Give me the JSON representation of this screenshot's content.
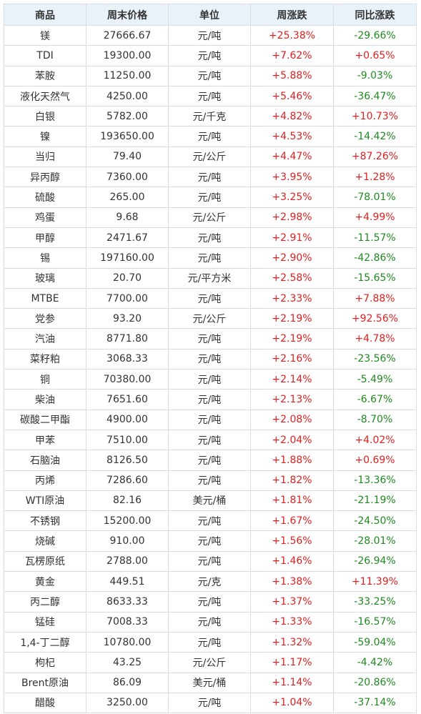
{
  "table": {
    "headers": [
      "商品",
      "周末价格",
      "单位",
      "周涨跌",
      "同比涨跌"
    ],
    "colors": {
      "up": "#e02020",
      "down": "#1f8a1f",
      "header_bg": "#e9f1f9",
      "border": "#d9dde3"
    },
    "rows": [
      [
        "镁",
        "27666.67",
        "元/吨",
        "+25.38%",
        "-29.66%"
      ],
      [
        "TDI",
        "19300.00",
        "元/吨",
        "+7.62%",
        "+0.65%"
      ],
      [
        "苯胺",
        "11250.00",
        "元/吨",
        "+5.88%",
        "-9.03%"
      ],
      [
        "液化天然气",
        "4250.00",
        "元/吨",
        "+5.46%",
        "-36.47%"
      ],
      [
        "白银",
        "5782.00",
        "元/千克",
        "+4.82%",
        "+10.73%"
      ],
      [
        "镍",
        "193650.00",
        "元/吨",
        "+4.53%",
        "-14.42%"
      ],
      [
        "当归",
        "79.40",
        "元/公斤",
        "+4.47%",
        "+87.26%"
      ],
      [
        "异丙醇",
        "7360.00",
        "元/吨",
        "+3.95%",
        "+1.28%"
      ],
      [
        "硫酸",
        "265.00",
        "元/吨",
        "+3.25%",
        "-78.01%"
      ],
      [
        "鸡蛋",
        "9.68",
        "元/公斤",
        "+2.98%",
        "+4.99%"
      ],
      [
        "甲醇",
        "2471.67",
        "元/吨",
        "+2.91%",
        "-11.57%"
      ],
      [
        "锡",
        "197160.00",
        "元/吨",
        "+2.90%",
        "-42.86%"
      ],
      [
        "玻璃",
        "20.70",
        "元/平方米",
        "+2.58%",
        "-15.65%"
      ],
      [
        "MTBE",
        "7700.00",
        "元/吨",
        "+2.33%",
        "+7.88%"
      ],
      [
        "党参",
        "93.20",
        "元/公斤",
        "+2.19%",
        "+92.56%"
      ],
      [
        "汽油",
        "8771.80",
        "元/吨",
        "+2.19%",
        "+4.78%"
      ],
      [
        "菜籽粕",
        "3068.33",
        "元/吨",
        "+2.16%",
        "-23.56%"
      ],
      [
        "铜",
        "70380.00",
        "元/吨",
        "+2.14%",
        "-5.49%"
      ],
      [
        "柴油",
        "7651.60",
        "元/吨",
        "+2.13%",
        "-6.67%"
      ],
      [
        "碳酸二甲酯",
        "4900.00",
        "元/吨",
        "+2.08%",
        "-8.70%"
      ],
      [
        "甲苯",
        "7510.00",
        "元/吨",
        "+2.04%",
        "+4.02%"
      ],
      [
        "石脑油",
        "8126.50",
        "元/吨",
        "+1.88%",
        "+0.69%"
      ],
      [
        "丙烯",
        "7286.60",
        "元/吨",
        "+1.82%",
        "-13.36%"
      ],
      [
        "WTI原油",
        "82.16",
        "美元/桶",
        "+1.81%",
        "-21.19%"
      ],
      [
        "不锈钢",
        "15200.00",
        "元/吨",
        "+1.67%",
        "-24.50%"
      ],
      [
        "烧碱",
        "910.00",
        "元/吨",
        "+1.56%",
        "-28.01%"
      ],
      [
        "瓦楞原纸",
        "2788.00",
        "元/吨",
        "+1.46%",
        "-26.94%"
      ],
      [
        "黄金",
        "449.51",
        "元/克",
        "+1.38%",
        "+11.39%"
      ],
      [
        "丙二醇",
        "8633.33",
        "元/吨",
        "+1.37%",
        "-33.25%"
      ],
      [
        "锰硅",
        "7008.33",
        "元/吨",
        "+1.33%",
        "-16.57%"
      ],
      [
        "1,4-丁二醇",
        "10780.00",
        "元/吨",
        "+1.32%",
        "-59.04%"
      ],
      [
        "枸杞",
        "43.25",
        "元/公斤",
        "+1.17%",
        "-4.42%"
      ],
      [
        "Brent原油",
        "86.09",
        "美元/桶",
        "+1.14%",
        "-20.86%"
      ],
      [
        "醋酸",
        "3250.00",
        "元/吨",
        "+1.04%",
        "-37.14%"
      ]
    ]
  }
}
